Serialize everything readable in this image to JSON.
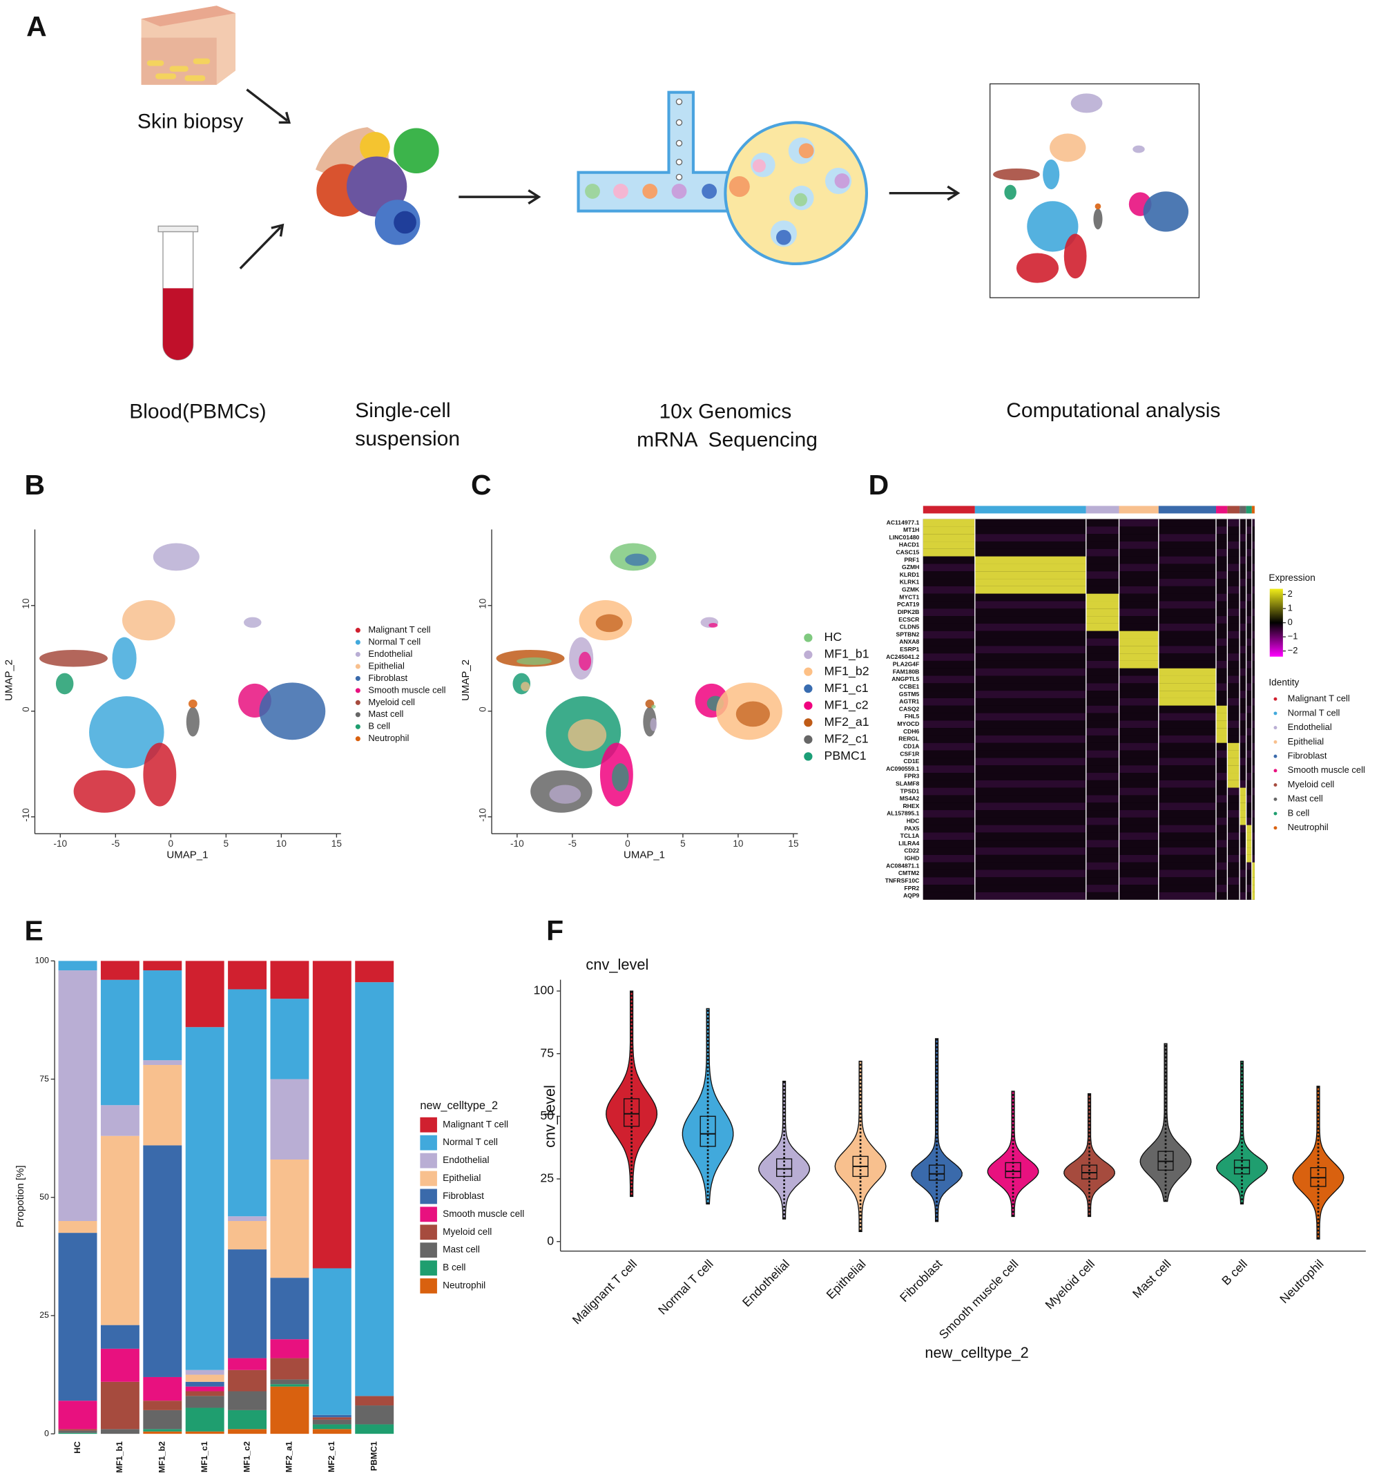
{
  "panel_labels": [
    "A",
    "B",
    "C",
    "D",
    "E",
    "F"
  ],
  "workflow": {
    "skin": "Skin biopsy",
    "blood": "Blood(PBMCs)",
    "suspension": [
      "Single-cell",
      "suspension"
    ],
    "sequencing": [
      "10x Genomics",
      "mRNA  Sequencing"
    ],
    "analysis": "Computational analysis"
  },
  "umap_b": {
    "xlabel": "UMAP_1",
    "ylabel": "UMAP_2",
    "xlim": [
      -12.3,
      15.4
    ],
    "ylim": [
      -11.6,
      17.2
    ],
    "xticks": [
      -10,
      -5,
      0,
      5,
      10,
      15
    ],
    "yticks": [
      -10,
      0,
      10
    ],
    "legend": [
      {
        "name": "Malignant T cell",
        "color": "#d0202f"
      },
      {
        "name": "Normal T cell",
        "color": "#41a9dc"
      },
      {
        "name": "Endothelial",
        "color": "#b9aed4"
      },
      {
        "name": "Epithelial",
        "color": "#f8c08e"
      },
      {
        "name": "Fibroblast",
        "color": "#3a6aab"
      },
      {
        "name": "Smooth muscle cell",
        "color": "#e8117f"
      },
      {
        "name": "Myeloid cell",
        "color": "#a64b3e"
      },
      {
        "name": "Mast cell",
        "color": "#666666"
      },
      {
        "name": "B cell",
        "color": "#1f9e6f"
      },
      {
        "name": "Neutrophil",
        "color": "#d9610f"
      }
    ]
  },
  "umap_c": {
    "xlabel": "UMAP_1",
    "ylabel": "UMAP_2",
    "xlim": [
      -12.3,
      15.4
    ],
    "ylim": [
      -11.6,
      17.2
    ],
    "xticks": [
      -10,
      -5,
      0,
      5,
      10,
      15
    ],
    "yticks": [
      -10,
      0,
      10
    ],
    "legend": [
      {
        "name": "HC",
        "color": "#7fc97f"
      },
      {
        "name": "MF1_b1",
        "color": "#beaed4"
      },
      {
        "name": "MF1_b2",
        "color": "#fdc086"
      },
      {
        "name": "MF1_c1",
        "color": "#386cb0"
      },
      {
        "name": "MF1_c2",
        "color": "#f0027f"
      },
      {
        "name": "MF2_a1",
        "color": "#bf5b17"
      },
      {
        "name": "MF2_c1",
        "color": "#666666"
      },
      {
        "name": "PBMC1",
        "color": "#1b9e77"
      }
    ]
  },
  "heatmap": {
    "genes": [
      "AC114977.1",
      "MT1H",
      "LINC01480",
      "HACD1",
      "CASC15",
      "PRF1",
      "GZMH",
      "KLRD1",
      "KLRK1",
      "GZMK",
      "MYCT1",
      "PCAT19",
      "DIPK2B",
      "ECSCR",
      "CLDN5",
      "SPTBN2",
      "ANXA8",
      "ESRP1",
      "AC245041.2",
      "PLA2G4F",
      "FAM180B",
      "ANGPTL5",
      "CCBE1",
      "GSTM5",
      "AGTR1",
      "CASQ2",
      "FHL5",
      "MYOCD",
      "CDH6",
      "RERGL",
      "CD1A",
      "CSF1R",
      "CD1E",
      "AC090559.1",
      "FPR3",
      "SLAMF8",
      "TPSD1",
      "MS4A2",
      "RHEX",
      "AL157895.1",
      "HDC",
      "PAX5",
      "TCL1A",
      "LILRA4",
      "CD22",
      "IGHD",
      "AC084871.1",
      "CMTM2",
      "TNFRSF10C",
      "FPR2",
      "AQP9"
    ],
    "expression_title": "Expression",
    "colorbar_ticks": [
      2,
      1,
      0,
      {
        "value": -1,
        "label": "−1"
      },
      {
        "value": -2,
        "label": "−2"
      }
    ],
    "colorbar_lim": [
      -2.4,
      2.4
    ],
    "identity_title": "Identity",
    "identities": [
      {
        "name": "Malignant T cell",
        "color": "#d0202f"
      },
      {
        "name": "Normal T cell",
        "color": "#41a9dc"
      },
      {
        "name": "Endothelial",
        "color": "#b9aed4"
      },
      {
        "name": "Epithelial",
        "color": "#f8c08e"
      },
      {
        "name": "Fibroblast",
        "color": "#3a6aab"
      },
      {
        "name": "Smooth muscle cell",
        "color": "#e8117f"
      },
      {
        "name": "Myeloid cell",
        "color": "#a64b3e"
      },
      {
        "name": "Mast cell",
        "color": "#666666"
      },
      {
        "name": "B cell",
        "color": "#1f9e6f"
      },
      {
        "name": "Neutrophil",
        "color": "#d9610f"
      }
    ]
  },
  "chart_data": [
    {
      "type": "stacked_bar",
      "ylabel": "Propotion [%]",
      "legend_title": "new_celltype_2",
      "categories": [
        "HC",
        "MF1_b1",
        "MF1_b2",
        "MF1_c1",
        "MF1_c2",
        "MF2_a1",
        "MF2_c1",
        "PBMC1"
      ],
      "ylim": [
        0,
        100
      ],
      "yticks": [
        0,
        25,
        50,
        75,
        100
      ],
      "series": [
        {
          "name": "Malignant T cell",
          "color": "#d0202f",
          "values": [
            0,
            4,
            2,
            14,
            6,
            8,
            65,
            4.5
          ]
        },
        {
          "name": "Normal T cell",
          "color": "#41a9dc",
          "values": [
            2,
            26.5,
            19,
            72.5,
            48,
            17,
            31,
            87.5
          ]
        },
        {
          "name": "Endothelial",
          "color": "#b9aed4",
          "values": [
            53,
            6.5,
            1,
            1,
            1,
            17,
            0,
            0
          ]
        },
        {
          "name": "Epithelial",
          "color": "#f8c08e",
          "values": [
            2.5,
            40,
            17,
            1.5,
            6,
            25,
            0,
            0
          ]
        },
        {
          "name": "Fibroblast",
          "color": "#3a6aab",
          "values": [
            35.5,
            5,
            49,
            1,
            23,
            13,
            0.5,
            0
          ]
        },
        {
          "name": "Smooth muscle cell",
          "color": "#e8117f",
          "values": [
            6,
            7,
            5,
            1,
            2.5,
            4,
            0,
            0
          ]
        },
        {
          "name": "Myeloid cell",
          "color": "#a64b3e",
          "values": [
            0.3,
            10,
            2,
            1,
            4.5,
            4.5,
            0.5,
            2
          ]
        },
        {
          "name": "Mast cell",
          "color": "#666666",
          "values": [
            0.5,
            1,
            4,
            2.5,
            4,
            1,
            1,
            4
          ]
        },
        {
          "name": "B cell",
          "color": "#1f9e6f",
          "values": [
            0.2,
            0,
            0.5,
            5,
            4,
            0.5,
            1,
            2
          ]
        },
        {
          "name": "Neutrophil",
          "color": "#d9610f",
          "values": [
            0,
            0,
            0.5,
            0.5,
            1,
            10,
            1,
            0
          ]
        }
      ]
    },
    {
      "type": "violin",
      "title": "cnv_level",
      "ylabel": "cnv_level",
      "xlabel": "new_celltype_2",
      "categories": [
        "Malignant T cell",
        "Normal T cell",
        "Endothelial",
        "Epithelial",
        "Fibroblast",
        "Smooth muscle cell",
        "Myeloid cell",
        "Mast cell",
        "B cell",
        "Neutrophil"
      ],
      "colors": [
        "#d0202f",
        "#41a9dc",
        "#b9aed4",
        "#f8c08e",
        "#3a6aab",
        "#e8117f",
        "#a64b3e",
        "#666666",
        "#1f9e6f",
        "#d9610f"
      ],
      "ylim": [
        -3.8,
        104.5
      ],
      "yticks": [
        0,
        25,
        50,
        75,
        100
      ],
      "median": [
        51,
        43,
        29,
        30,
        27,
        28,
        27.5,
        32,
        29.5,
        25.5
      ],
      "q1": [
        46,
        38,
        26,
        26,
        24.5,
        25.5,
        25,
        28.5,
        27,
        22
      ],
      "q3": [
        57,
        50,
        33,
        34,
        30.5,
        31.5,
        30.5,
        36,
        32.5,
        29.5
      ],
      "min": [
        18,
        15,
        9,
        4,
        8,
        10,
        10,
        16,
        15,
        1
      ],
      "max": [
        100,
        93,
        64,
        72,
        81,
        60,
        59,
        79,
        72,
        62
      ]
    }
  ]
}
